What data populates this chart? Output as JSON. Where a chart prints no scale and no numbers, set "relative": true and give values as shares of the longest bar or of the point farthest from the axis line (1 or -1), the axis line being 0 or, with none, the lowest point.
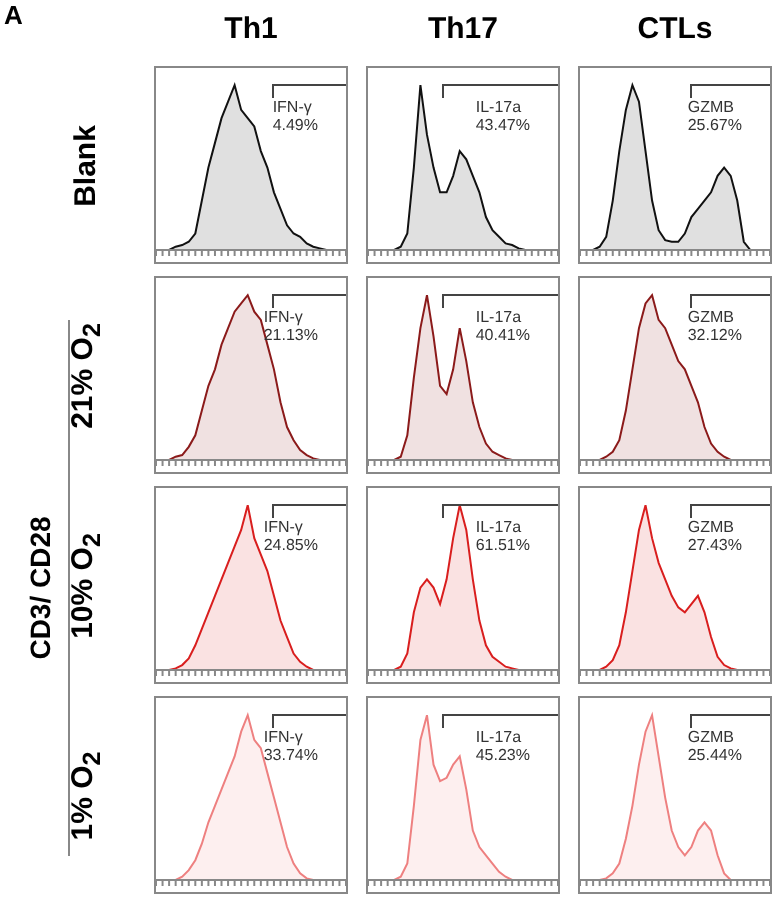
{
  "chart_data": [
    {
      "type": "area",
      "title": "Th1",
      "ylabel": "Blank",
      "relative": true,
      "categories": [
        null,
        null,
        null,
        null,
        null,
        null,
        null,
        null,
        null,
        null,
        null,
        null,
        null,
        null,
        null,
        null,
        null,
        null,
        null,
        null,
        null,
        null,
        null,
        null,
        null,
        null,
        null,
        null,
        null,
        null
      ],
      "series": [
        {
          "color": "#111111",
          "values": [
            0,
            0,
            0,
            0.02,
            0.03,
            0.05,
            0.1,
            0.3,
            0.5,
            0.65,
            0.8,
            0.9,
            1,
            0.85,
            0.8,
            0.75,
            0.6,
            0.5,
            0.35,
            0.25,
            0.15,
            0.1,
            0.08,
            0.04,
            0.02,
            0.01,
            0,
            0,
            0,
            0
          ]
        }
      ],
      "annotations": [
        "IFN-γ",
        "4.49%",
        "A"
      ]
    },
    {
      "type": "area",
      "title": "Th17",
      "relative": true,
      "categories": [
        null,
        null,
        null,
        null,
        null,
        null,
        null,
        null,
        null,
        null,
        null,
        null,
        null,
        null,
        null,
        null,
        null,
        null,
        null,
        null,
        null,
        null,
        null,
        null,
        null,
        null,
        null,
        null,
        null,
        null
      ],
      "series": [
        {
          "color": "#111111",
          "values": [
            0,
            0,
            0,
            0,
            0,
            0.02,
            0.1,
            0.5,
            1,
            0.7,
            0.5,
            0.35,
            0.35,
            0.45,
            0.6,
            0.55,
            0.45,
            0.35,
            0.2,
            0.12,
            0.08,
            0.04,
            0.03,
            0.01,
            0,
            0,
            0,
            0,
            0,
            0
          ]
        }
      ],
      "annotations": [
        "IL-17a",
        "43.47%"
      ]
    },
    {
      "type": "area",
      "title": "CTLs",
      "relative": true,
      "categories": [
        null,
        null,
        null,
        null,
        null,
        null,
        null,
        null,
        null,
        null,
        null,
        null,
        null,
        null,
        null,
        null,
        null,
        null,
        null,
        null,
        null,
        null,
        null,
        null,
        null,
        null,
        null,
        null,
        null,
        null
      ],
      "series": [
        {
          "color": "#111111",
          "values": [
            0,
            0,
            0,
            0.02,
            0.08,
            0.3,
            0.6,
            0.85,
            1,
            0.9,
            0.6,
            0.3,
            0.12,
            0.06,
            0.05,
            0.05,
            0.1,
            0.2,
            0.25,
            0.3,
            0.35,
            0.45,
            0.5,
            0.45,
            0.3,
            0.05,
            0,
            0,
            0,
            0
          ]
        }
      ],
      "annotations": [
        "GZMB",
        "25.67%"
      ]
    },
    {
      "type": "area",
      "ylabel": "21% O$_{2}$",
      "relative": true,
      "categories": [
        null,
        null,
        null,
        null,
        null,
        null,
        null,
        null,
        null,
        null,
        null,
        null,
        null,
        null,
        null,
        null,
        null,
        null,
        null,
        null,
        null,
        null,
        null,
        null,
        null,
        null,
        null,
        null,
        null,
        null
      ],
      "series": [
        {
          "color": "#8b1a1a",
          "values": [
            0,
            0,
            0,
            0.02,
            0.03,
            0.08,
            0.15,
            0.3,
            0.45,
            0.55,
            0.7,
            0.8,
            0.9,
            0.95,
            1,
            0.9,
            0.85,
            0.7,
            0.55,
            0.35,
            0.2,
            0.12,
            0.06,
            0.03,
            0.01,
            0,
            0,
            0,
            0,
            0
          ]
        }
      ],
      "annotations": [
        "IFN-γ",
        "21.13%",
        "CD3/ CD28"
      ]
    },
    {
      "type": "area",
      "relative": true,
      "categories": [
        null,
        null,
        null,
        null,
        null,
        null,
        null,
        null,
        null,
        null,
        null,
        null,
        null,
        null,
        null,
        null,
        null,
        null,
        null,
        null,
        null,
        null,
        null,
        null,
        null,
        null,
        null,
        null,
        null,
        null
      ],
      "series": [
        {
          "color": "#8b1a1a",
          "values": [
            0,
            0,
            0,
            0,
            0,
            0.02,
            0.15,
            0.5,
            0.8,
            1,
            0.75,
            0.45,
            0.4,
            0.55,
            0.8,
            0.6,
            0.35,
            0.2,
            0.1,
            0.05,
            0.03,
            0.01,
            0,
            0,
            0,
            0,
            0,
            0,
            0,
            0
          ]
        }
      ],
      "annotations": [
        "IL-17a",
        "40.41%"
      ]
    },
    {
      "type": "area",
      "relative": true,
      "categories": [
        null,
        null,
        null,
        null,
        null,
        null,
        null,
        null,
        null,
        null,
        null,
        null,
        null,
        null,
        null,
        null,
        null,
        null,
        null,
        null,
        null,
        null,
        null,
        null,
        null,
        null,
        null,
        null,
        null,
        null
      ],
      "series": [
        {
          "color": "#8b1a1a",
          "values": [
            0,
            0,
            0,
            0,
            0.02,
            0.05,
            0.12,
            0.3,
            0.55,
            0.8,
            0.95,
            1,
            0.85,
            0.8,
            0.7,
            0.6,
            0.55,
            0.45,
            0.35,
            0.2,
            0.1,
            0.05,
            0.02,
            0,
            0,
            0,
            0,
            0,
            0,
            0
          ]
        }
      ],
      "annotations": [
        "GZMB",
        "32.12%"
      ]
    },
    {
      "type": "area",
      "ylabel": "10% O$_{2}$",
      "relative": true,
      "categories": [
        null,
        null,
        null,
        null,
        null,
        null,
        null,
        null,
        null,
        null,
        null,
        null,
        null,
        null,
        null,
        null,
        null,
        null,
        null,
        null,
        null,
        null,
        null,
        null,
        null,
        null,
        null,
        null,
        null,
        null
      ],
      "series": [
        {
          "color": "#d91e1e",
          "values": [
            0,
            0,
            0,
            0.01,
            0.03,
            0.07,
            0.15,
            0.25,
            0.35,
            0.45,
            0.55,
            0.65,
            0.75,
            0.85,
            1,
            0.8,
            0.7,
            0.6,
            0.45,
            0.3,
            0.2,
            0.1,
            0.05,
            0.02,
            0,
            0,
            0,
            0,
            0,
            0
          ]
        }
      ],
      "annotations": [
        "IFN-γ",
        "24.85%"
      ]
    },
    {
      "type": "area",
      "relative": true,
      "categories": [
        null,
        null,
        null,
        null,
        null,
        null,
        null,
        null,
        null,
        null,
        null,
        null,
        null,
        null,
        null,
        null,
        null,
        null,
        null,
        null,
        null,
        null,
        null,
        null,
        null,
        null,
        null,
        null,
        null,
        null
      ],
      "series": [
        {
          "color": "#d91e1e",
          "values": [
            0,
            0,
            0,
            0,
            0,
            0.02,
            0.1,
            0.35,
            0.5,
            0.55,
            0.5,
            0.4,
            0.55,
            0.8,
            1,
            0.85,
            0.55,
            0.3,
            0.15,
            0.08,
            0.05,
            0.02,
            0.01,
            0,
            0,
            0,
            0,
            0,
            0,
            0
          ]
        }
      ],
      "annotations": [
        "IL-17a",
        "61.51%"
      ]
    },
    {
      "type": "area",
      "relative": true,
      "categories": [
        null,
        null,
        null,
        null,
        null,
        null,
        null,
        null,
        null,
        null,
        null,
        null,
        null,
        null,
        null,
        null,
        null,
        null,
        null,
        null,
        null,
        null,
        null,
        null,
        null,
        null,
        null,
        null,
        null,
        null
      ],
      "series": [
        {
          "color": "#d91e1e",
          "values": [
            0,
            0,
            0,
            0,
            0.02,
            0.06,
            0.15,
            0.35,
            0.6,
            0.85,
            1,
            0.8,
            0.65,
            0.55,
            0.45,
            0.38,
            0.35,
            0.4,
            0.45,
            0.35,
            0.2,
            0.08,
            0.03,
            0.01,
            0,
            0,
            0,
            0,
            0,
            0
          ]
        }
      ],
      "annotations": [
        "GZMB",
        "27.43%"
      ]
    },
    {
      "type": "area",
      "ylabel": "1% O$_{2}$",
      "relative": true,
      "categories": [
        null,
        null,
        null,
        null,
        null,
        null,
        null,
        null,
        null,
        null,
        null,
        null,
        null,
        null,
        null,
        null,
        null,
        null,
        null,
        null,
        null,
        null,
        null,
        null,
        null,
        null,
        null,
        null,
        null,
        null
      ],
      "series": [
        {
          "color": "#ee8080",
          "values": [
            0,
            0,
            0,
            0,
            0.02,
            0.06,
            0.12,
            0.22,
            0.35,
            0.45,
            0.55,
            0.65,
            0.75,
            0.9,
            1,
            0.85,
            0.8,
            0.65,
            0.5,
            0.35,
            0.2,
            0.1,
            0.04,
            0.01,
            0,
            0,
            0,
            0,
            0,
            0
          ]
        }
      ],
      "annotations": [
        "IFN-γ",
        "33.74%"
      ]
    },
    {
      "type": "area",
      "relative": true,
      "categories": [
        null,
        null,
        null,
        null,
        null,
        null,
        null,
        null,
        null,
        null,
        null,
        null,
        null,
        null,
        null,
        null,
        null,
        null,
        null,
        null,
        null,
        null,
        null,
        null,
        null,
        null,
        null,
        null,
        null,
        null
      ],
      "series": [
        {
          "color": "#ee8080",
          "values": [
            0,
            0,
            0,
            0,
            0,
            0.02,
            0.1,
            0.45,
            0.85,
            1,
            0.7,
            0.6,
            0.62,
            0.7,
            0.75,
            0.55,
            0.3,
            0.2,
            0.15,
            0.1,
            0.05,
            0.02,
            0,
            0,
            0,
            0,
            0,
            0,
            0,
            0
          ]
        }
      ],
      "annotations": [
        "IL-17a",
        "45.23%"
      ]
    },
    {
      "type": "area",
      "relative": true,
      "categories": [
        null,
        null,
        null,
        null,
        null,
        null,
        null,
        null,
        null,
        null,
        null,
        null,
        null,
        null,
        null,
        null,
        null,
        null,
        null,
        null,
        null,
        null,
        null,
        null,
        null,
        null,
        null,
        null,
        null,
        null
      ],
      "series": [
        {
          "color": "#ee8080",
          "values": [
            0,
            0,
            0,
            0,
            0.01,
            0.04,
            0.1,
            0.25,
            0.45,
            0.7,
            0.9,
            1,
            0.75,
            0.5,
            0.3,
            0.2,
            0.15,
            0.2,
            0.3,
            0.35,
            0.3,
            0.15,
            0.04,
            0,
            0,
            0,
            0,
            0,
            0,
            0
          ]
        }
      ],
      "annotations": [
        "GZMB",
        "25.44%"
      ]
    }
  ]
}
